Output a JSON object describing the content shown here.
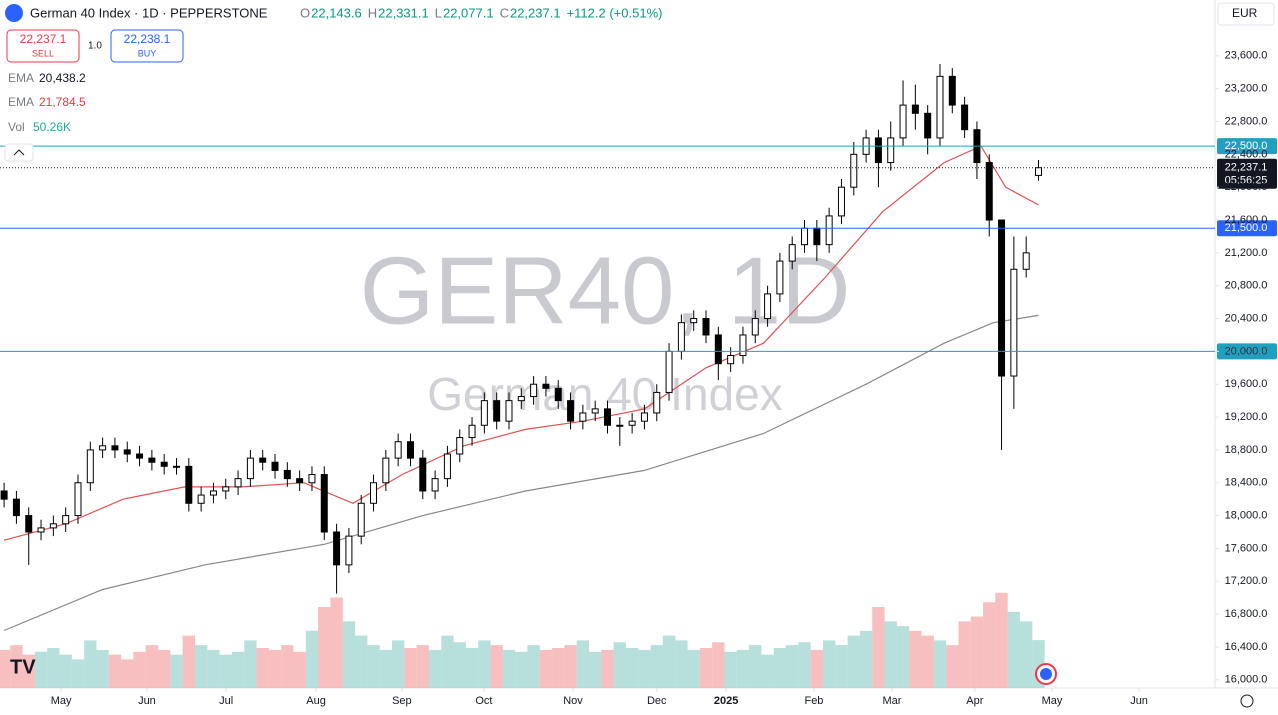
{
  "chart_data": {
    "type": "candlestick",
    "title": "German 40 Index · 1D · PEPPERSTONE",
    "ohlc": [
      {
        "key": "O",
        "label": "22,143.6"
      },
      {
        "key": "H",
        "label": "22,331.1"
      },
      {
        "key": "L",
        "label": "22,077.1"
      },
      {
        "key": "C",
        "label": "22,237.1"
      }
    ],
    "change": "+112.2 (+0.51%)",
    "trade": {
      "sell": "22,237.1",
      "sell_text": "SELL",
      "size": "1.0",
      "buy": "22,238.1",
      "buy_text": "BUY"
    },
    "currency": "EUR",
    "watermark": "GER40, 1D",
    "watermark_sub": "German 40 Index",
    "volume_name": "Vol",
    "volume_label": "50.26K",
    "up_color": "#ffffff",
    "down_color": "#000000",
    "volume_up_color": "#9fd4cf",
    "volume_down_color": "#f4a9a9",
    "x": [
      0,
      3,
      6,
      9,
      12,
      15,
      18,
      21,
      24,
      27,
      30,
      33,
      36,
      39,
      42,
      45,
      48,
      51,
      54,
      57,
      60,
      63,
      66,
      69,
      72,
      75,
      78,
      81,
      84,
      87,
      90,
      93,
      96,
      99,
      102,
      105,
      108,
      111,
      114,
      117,
      120,
      123,
      126,
      129,
      132,
      135,
      138,
      141,
      144,
      147,
      150,
      153,
      156,
      159,
      162,
      165,
      168,
      171,
      174,
      177,
      180,
      183,
      186,
      189,
      192,
      195,
      198,
      201,
      204,
      207,
      210,
      213,
      216,
      219,
      222,
      225,
      228,
      231,
      234,
      237,
      240,
      243,
      246,
      249,
      252
    ],
    "open": [
      18300,
      18200,
      18000,
      17800,
      17850,
      17900,
      18000,
      18400,
      18800,
      18850,
      18800,
      18750,
      18700,
      18650,
      18600,
      18600,
      18150,
      18250,
      18300,
      18350,
      18450,
      18700,
      18650,
      18550,
      18450,
      18400,
      18500,
      17800,
      17400,
      17750,
      18150,
      18400,
      18700,
      18900,
      18700,
      18300,
      18450,
      18750,
      18950,
      19100,
      19400,
      19150,
      19400,
      19450,
      19600,
      19550,
      19400,
      19150,
      19250,
      19300,
      19100,
      19100,
      19150,
      19250,
      19500,
      20000,
      20350,
      20400,
      20200,
      19850,
      19950,
      20200,
      20400,
      20700,
      21100,
      21300,
      21500,
      21300,
      21650,
      22000,
      22400,
      22600,
      22300,
      22600,
      23000,
      22900,
      22600,
      23350,
      23000,
      22700,
      22300,
      21600,
      19700,
      21000,
      22143.6
    ],
    "high": [
      18400,
      18300,
      18100,
      17950,
      18000,
      18100,
      18500,
      18900,
      18950,
      18950,
      18900,
      18850,
      18800,
      18750,
      18700,
      18700,
      18350,
      18400,
      18450,
      18550,
      18800,
      18800,
      18750,
      18650,
      18550,
      18600,
      18600,
      17900,
      17850,
      18250,
      18500,
      18800,
      19000,
      19000,
      18800,
      18550,
      18850,
      19050,
      19200,
      19500,
      19500,
      19500,
      19550,
      19700,
      19700,
      19650,
      19500,
      19350,
      19400,
      19400,
      19200,
      19250,
      19350,
      19600,
      20100,
      20450,
      20500,
      20500,
      20300,
      20050,
      20300,
      20500,
      20800,
      21200,
      21400,
      21600,
      21600,
      21750,
      22100,
      22550,
      22700,
      22700,
      22800,
      23300,
      23250,
      23000,
      23500,
      23450,
      23100,
      22800,
      22400,
      21600,
      21400,
      21400,
      22331.1
    ],
    "low": [
      18100,
      17900,
      17400,
      17700,
      17750,
      17800,
      17900,
      18300,
      18700,
      18700,
      18650,
      18600,
      18550,
      18500,
      18500,
      18050,
      18050,
      18150,
      18200,
      18250,
      18350,
      18550,
      18450,
      18350,
      18300,
      18300,
      17700,
      17050,
      17300,
      17650,
      18050,
      18300,
      18600,
      18600,
      18200,
      18200,
      18350,
      18650,
      18850,
      19000,
      19050,
      19050,
      19300,
      19350,
      19450,
      19300,
      19050,
      19050,
      19150,
      19000,
      18850,
      19000,
      19050,
      19150,
      19400,
      19900,
      20250,
      20100,
      19650,
      19750,
      19850,
      20100,
      20300,
      20600,
      21000,
      21200,
      21100,
      21200,
      21550,
      21900,
      22300,
      22000,
      22200,
      22500,
      22700,
      22400,
      22500,
      22900,
      22600,
      22100,
      21400,
      18800,
      19300,
      20900,
      22077.1
    ],
    "close": [
      18200,
      18000,
      17800,
      17850,
      17900,
      18000,
      18400,
      18800,
      18850,
      18800,
      18750,
      18700,
      18650,
      18600,
      18600,
      18150,
      18250,
      18300,
      18350,
      18450,
      18700,
      18650,
      18550,
      18450,
      18400,
      18500,
      17800,
      17400,
      17750,
      18150,
      18400,
      18700,
      18900,
      18700,
      18300,
      18450,
      18750,
      18950,
      19100,
      19400,
      19150,
      19400,
      19450,
      19600,
      19550,
      19400,
      19150,
      19250,
      19300,
      19100,
      19100,
      19150,
      19250,
      19500,
      20000,
      20350,
      20400,
      20200,
      19850,
      19950,
      20200,
      20400,
      20700,
      21100,
      21300,
      21500,
      21300,
      21650,
      22000,
      22400,
      22600,
      22300,
      22600,
      23000,
      22900,
      22600,
      23350,
      23000,
      22700,
      22300,
      21600,
      19700,
      21000,
      21200,
      22237.1
    ],
    "volume": [
      40,
      45,
      35,
      38,
      42,
      35,
      30,
      50,
      40,
      35,
      30,
      38,
      45,
      40,
      35,
      55,
      45,
      40,
      35,
      38,
      50,
      42,
      40,
      45,
      38,
      60,
      85,
      95,
      70,
      55,
      45,
      40,
      50,
      42,
      45,
      40,
      55,
      48,
      42,
      50,
      45,
      40,
      38,
      45,
      40,
      42,
      45,
      50,
      38,
      40,
      48,
      42,
      40,
      45,
      55,
      50,
      40,
      42,
      48,
      38,
      40,
      45,
      35,
      42,
      45,
      48,
      40,
      50,
      45,
      55,
      60,
      85,
      70,
      65,
      60,
      55,
      50,
      45,
      70,
      75,
      90,
      100,
      80,
      70,
      50.26
    ],
    "volume_lim": [
      0,
      105
    ],
    "lines": [
      {
        "name": "EMA",
        "legend_value": "20,438.2",
        "color": "#888888",
        "x": [
          0,
          24,
          49,
          78,
          102,
          127,
          156,
          185,
          210,
          229,
          241,
          252
        ],
        "values": [
          16600,
          17100,
          17400,
          17650,
          18000,
          18300,
          18550,
          19000,
          19600,
          20100,
          20350,
          20438.2
        ]
      },
      {
        "name": "EMA",
        "legend_value": "21,784.5",
        "color": "#e05252",
        "x": [
          0,
          15,
          29,
          44,
          58,
          73,
          85,
          97,
          112,
          127,
          141,
          156,
          171,
          185,
          200,
          214,
          229,
          238,
          244,
          252
        ],
        "values": [
          17700,
          17900,
          18200,
          18350,
          18350,
          18400,
          18150,
          18500,
          18850,
          19050,
          19150,
          19300,
          19800,
          20100,
          20900,
          21700,
          22300,
          22500,
          22000,
          21784.5
        ]
      }
    ],
    "levels": [
      {
        "value": 22500,
        "label": "22,500.0",
        "color": "#1ea0c0"
      },
      {
        "value": 21500,
        "label": "21,500.0",
        "color": "#2962ff"
      },
      {
        "value": 20000,
        "label": "20,000.0",
        "color": "#1ea0c0"
      }
    ],
    "last_price": {
      "value": 22237.1,
      "label": "22,237.1",
      "countdown": "05:56:25"
    },
    "xlim": [
      -1,
      295
    ],
    "xticks": [
      {
        "value": 13.9,
        "label": "May"
      },
      {
        "value": 34.8,
        "label": "Jun"
      },
      {
        "value": 54.1,
        "label": "Jul"
      },
      {
        "value": 76,
        "label": "Aug"
      },
      {
        "value": 96.9,
        "label": "Sep"
      },
      {
        "value": 116.9,
        "label": "Oct"
      },
      {
        "value": 138.6,
        "label": "Nov"
      },
      {
        "value": 159,
        "label": "Dec"
      },
      {
        "value": 175.9,
        "label": "2025"
      },
      {
        "value": 197.3,
        "label": "Feb"
      },
      {
        "value": 216.3,
        "label": "Mar"
      },
      {
        "value": 236.5,
        "label": "Apr"
      },
      {
        "value": 255.3,
        "label": "May"
      },
      {
        "value": 276.5,
        "label": "Jun"
      }
    ],
    "ylim": [
      15900,
      24280
    ],
    "yticks": [
      {
        "value": 16000,
        "label": "16,000.0"
      },
      {
        "value": 16400,
        "label": "16,400.0"
      },
      {
        "value": 16800,
        "label": "16,800.0"
      },
      {
        "value": 17200,
        "label": "17,200.0"
      },
      {
        "value": 17600,
        "label": "17,600.0"
      },
      {
        "value": 18000,
        "label": "18,000.0"
      },
      {
        "value": 18400,
        "label": "18,400.0"
      },
      {
        "value": 18800,
        "label": "18,800.0"
      },
      {
        "value": 19200,
        "label": "19,200.0"
      },
      {
        "value": 19600,
        "label": "19,600.0"
      },
      {
        "value": 20000,
        "label": "20,000.0"
      },
      {
        "value": 20400,
        "label": "20,400.0"
      },
      {
        "value": 20800,
        "label": "20,800.0"
      },
      {
        "value": 21200,
        "label": "21,200.0"
      },
      {
        "value": 21600,
        "label": "21,600.0"
      },
      {
        "value": 22000,
        "label": "22,000.0"
      },
      {
        "value": 22400,
        "label": "22,400.0"
      },
      {
        "value": 22800,
        "label": "22,800.0"
      },
      {
        "value": 23200,
        "label": "23,200.0"
      },
      {
        "value": 23600,
        "label": "23,600.0"
      }
    ]
  }
}
